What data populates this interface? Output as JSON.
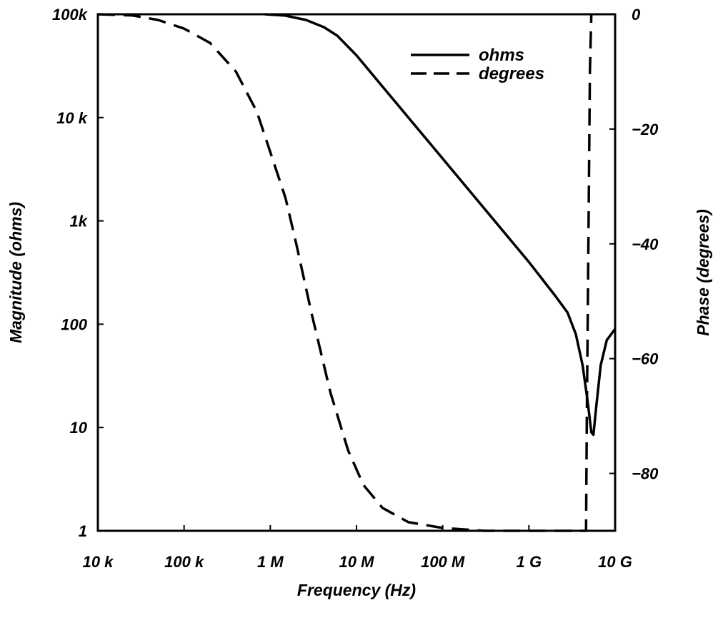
{
  "chart_data": {
    "type": "line",
    "xlabel": "Frequency (Hz)",
    "ylabel_left": "Magnitude (ohms)",
    "ylabel_right": "Phase (degrees)",
    "x_scale": "log",
    "y_left_scale": "log",
    "xlim": [
      10000,
      10000000000
    ],
    "ylim_left": [
      1,
      100000
    ],
    "ylim_right": [
      -90,
      0
    ],
    "x_ticks": [
      {
        "value": 10000,
        "label": "10 k"
      },
      {
        "value": 100000,
        "label": "100 k"
      },
      {
        "value": 1000000,
        "label": "1 M"
      },
      {
        "value": 10000000,
        "label": "10 M"
      },
      {
        "value": 100000000,
        "label": "100 M"
      },
      {
        "value": 1000000000,
        "label": "1 G"
      },
      {
        "value": 10000000000,
        "label": "10 G"
      }
    ],
    "y_left_ticks": [
      {
        "value": 1,
        "label": "1"
      },
      {
        "value": 10,
        "label": "10"
      },
      {
        "value": 100,
        "label": "100"
      },
      {
        "value": 1000,
        "label": "1k"
      },
      {
        "value": 10000,
        "label": "10 k"
      },
      {
        "value": 100000,
        "label": "100k"
      }
    ],
    "y_right_ticks": [
      {
        "value": 0,
        "label": "0"
      },
      {
        "value": -20,
        "label": "−20"
      },
      {
        "value": -40,
        "label": "−40"
      },
      {
        "value": -60,
        "label": "−60"
      },
      {
        "value": -80,
        "label": "−80"
      }
    ],
    "grid": false,
    "legend_position": "top-right",
    "series": [
      {
        "name": "ohms",
        "axis": "left",
        "style": "solid",
        "color": "#000000",
        "points": [
          [
            870000,
            100000
          ],
          [
            1500000,
            97000
          ],
          [
            2600000,
            88000
          ],
          [
            4200000,
            75000
          ],
          [
            6000000,
            62000
          ],
          [
            10000000,
            40000
          ],
          [
            20000000,
            20000
          ],
          [
            50000000,
            8000
          ],
          [
            100000000,
            4000
          ],
          [
            200000000,
            2000
          ],
          [
            500000000,
            800
          ],
          [
            1000000000,
            400
          ],
          [
            2000000000,
            190
          ],
          [
            2800000000,
            130
          ],
          [
            3500000000,
            80
          ],
          [
            4200000000,
            40
          ],
          [
            4800000000,
            18
          ],
          [
            5300000000,
            9
          ],
          [
            5600000000,
            8.5
          ],
          [
            6000000000,
            15
          ],
          [
            6800000000,
            40
          ],
          [
            8000000000,
            70
          ],
          [
            10000000000,
            90
          ]
        ]
      },
      {
        "name": "degrees",
        "axis": "right",
        "style": "dashed",
        "color": "#000000",
        "points": [
          [
            10000,
            0
          ],
          [
            25000,
            -0.2
          ],
          [
            50000,
            -1
          ],
          [
            100000,
            -2.5
          ],
          [
            200000,
            -5
          ],
          [
            400000,
            -10
          ],
          [
            700000,
            -17
          ],
          [
            1000000,
            -24
          ],
          [
            1500000,
            -32
          ],
          [
            2000000,
            -40
          ],
          [
            3000000,
            -52
          ],
          [
            5000000,
            -66
          ],
          [
            8000000,
            -76
          ],
          [
            12000000,
            -82
          ],
          [
            20000000,
            -86
          ],
          [
            40000000,
            -88.5
          ],
          [
            100000000,
            -89.5
          ],
          [
            300000000,
            -90
          ],
          [
            4600000000,
            -90
          ],
          [
            4700000000,
            -70
          ],
          [
            4900000000,
            -40
          ],
          [
            5100000000,
            -10
          ],
          [
            5300000000,
            0
          ]
        ]
      }
    ]
  }
}
